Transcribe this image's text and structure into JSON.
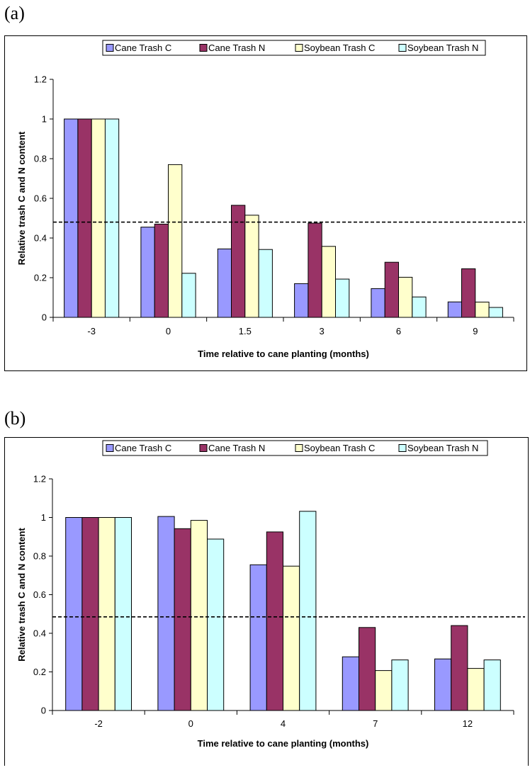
{
  "panels": [
    {
      "label": "(a)"
    },
    {
      "label": "(b)"
    }
  ],
  "colors": {
    "series": [
      "#9999FF",
      "#993366",
      "#FFFFCC",
      "#CCFFFF"
    ],
    "stroke": "#000000",
    "reference_line": "#000000"
  },
  "chart_data": [
    {
      "type": "bar",
      "categories": [
        "-3",
        "0",
        "1.5",
        "3",
        "6",
        "9"
      ],
      "series": [
        {
          "name": "Cane Trash C",
          "values": [
            1.0,
            0.455,
            0.345,
            0.17,
            0.145,
            0.078
          ]
        },
        {
          "name": "Cane Trash N",
          "values": [
            1.0,
            0.47,
            0.565,
            0.475,
            0.278,
            0.245
          ]
        },
        {
          "name": "Soybean Trash C",
          "values": [
            1.0,
            0.77,
            0.515,
            0.358,
            0.202,
            0.077
          ]
        },
        {
          "name": "Soybean Trash N",
          "values": [
            1.0,
            0.222,
            0.342,
            0.193,
            0.103,
            0.05
          ]
        }
      ],
      "reference_line": 0.48,
      "title": "",
      "xlabel": "Time relative to cane planting (months)",
      "ylabel": "Relative trash C and N content",
      "ylim": [
        0,
        1.2
      ],
      "yticks": [
        "0",
        "0.2",
        "0.4",
        "0.6",
        "0.8",
        "1",
        "1.2"
      ],
      "legend": "top-center",
      "grid": false
    },
    {
      "type": "bar",
      "categories": [
        "-2",
        "0",
        "4",
        "7",
        "12"
      ],
      "series": [
        {
          "name": "Cane Trash C",
          "values": [
            1.0,
            1.005,
            0.755,
            0.278,
            0.267
          ]
        },
        {
          "name": "Cane Trash N",
          "values": [
            1.0,
            0.942,
            0.925,
            0.43,
            0.44
          ]
        },
        {
          "name": "Soybean Trash C",
          "values": [
            1.0,
            0.985,
            0.748,
            0.207,
            0.218
          ]
        },
        {
          "name": "Soybean Trash N",
          "values": [
            1.0,
            0.888,
            1.032,
            0.262,
            0.262
          ]
        }
      ],
      "reference_line": 0.485,
      "title": "",
      "xlabel": "Time relative to cane planting (months)",
      "ylabel": "Relative trash C and N content",
      "ylim": [
        0,
        1.2
      ],
      "yticks": [
        "0",
        "0.2",
        "0.4",
        "0.6",
        "0.8",
        "1",
        "1.2"
      ],
      "legend": "top-center",
      "grid": false
    }
  ]
}
